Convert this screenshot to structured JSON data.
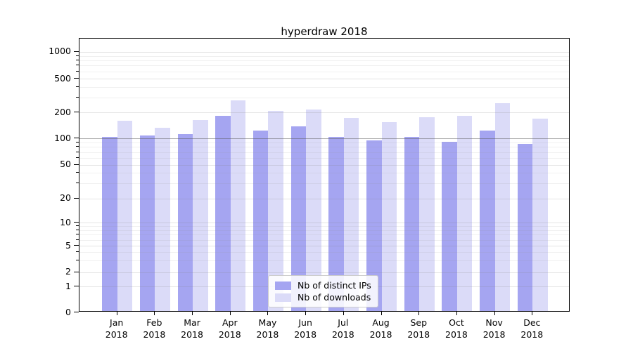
{
  "title": "hyperdraw 2018",
  "chart_data": {
    "type": "bar",
    "title": "hyperdraw 2018",
    "yscale": "symlog",
    "grid": true,
    "ylim": [
      0,
      1400
    ],
    "categories": [
      "Jan 2018",
      "Feb 2018",
      "Mar 2018",
      "Apr 2018",
      "May 2018",
      "Jun 2018",
      "Jul 2018",
      "Aug 2018",
      "Sep 2018",
      "Oct 2018",
      "Nov 2018",
      "Dec 2018"
    ],
    "month_labels": [
      "Jan",
      "Feb",
      "Mar",
      "Apr",
      "May",
      "Jun",
      "Jul",
      "Aug",
      "Sep",
      "Oct",
      "Nov",
      "Dec"
    ],
    "year_label": "2018",
    "series": [
      {
        "name": "Nb of distinct IPs",
        "color": "#a5a5f1",
        "values": [
          100,
          105,
          109,
          177,
          118,
          132,
          101,
          92,
          101,
          88,
          120,
          84
        ]
      },
      {
        "name": "Nb of downloads",
        "color": "#dbdbf8",
        "values": [
          155,
          127,
          157,
          265,
          200,
          207,
          166,
          149,
          168,
          176,
          245,
          164
        ]
      }
    ],
    "y_major_ticks": [
      1000,
      500,
      200,
      100,
      50,
      20,
      10,
      5,
      2,
      1,
      0
    ],
    "y_minor_gridlines": [
      900,
      800,
      700,
      600,
      400,
      300,
      90,
      80,
      70,
      60,
      40,
      30,
      9,
      8,
      7,
      6,
      4,
      3
    ],
    "reference_line": {
      "value": 100
    },
    "legend": {
      "position": "lower center",
      "entries": [
        "Nb of distinct IPs",
        "Nb of downloads"
      ]
    }
  }
}
